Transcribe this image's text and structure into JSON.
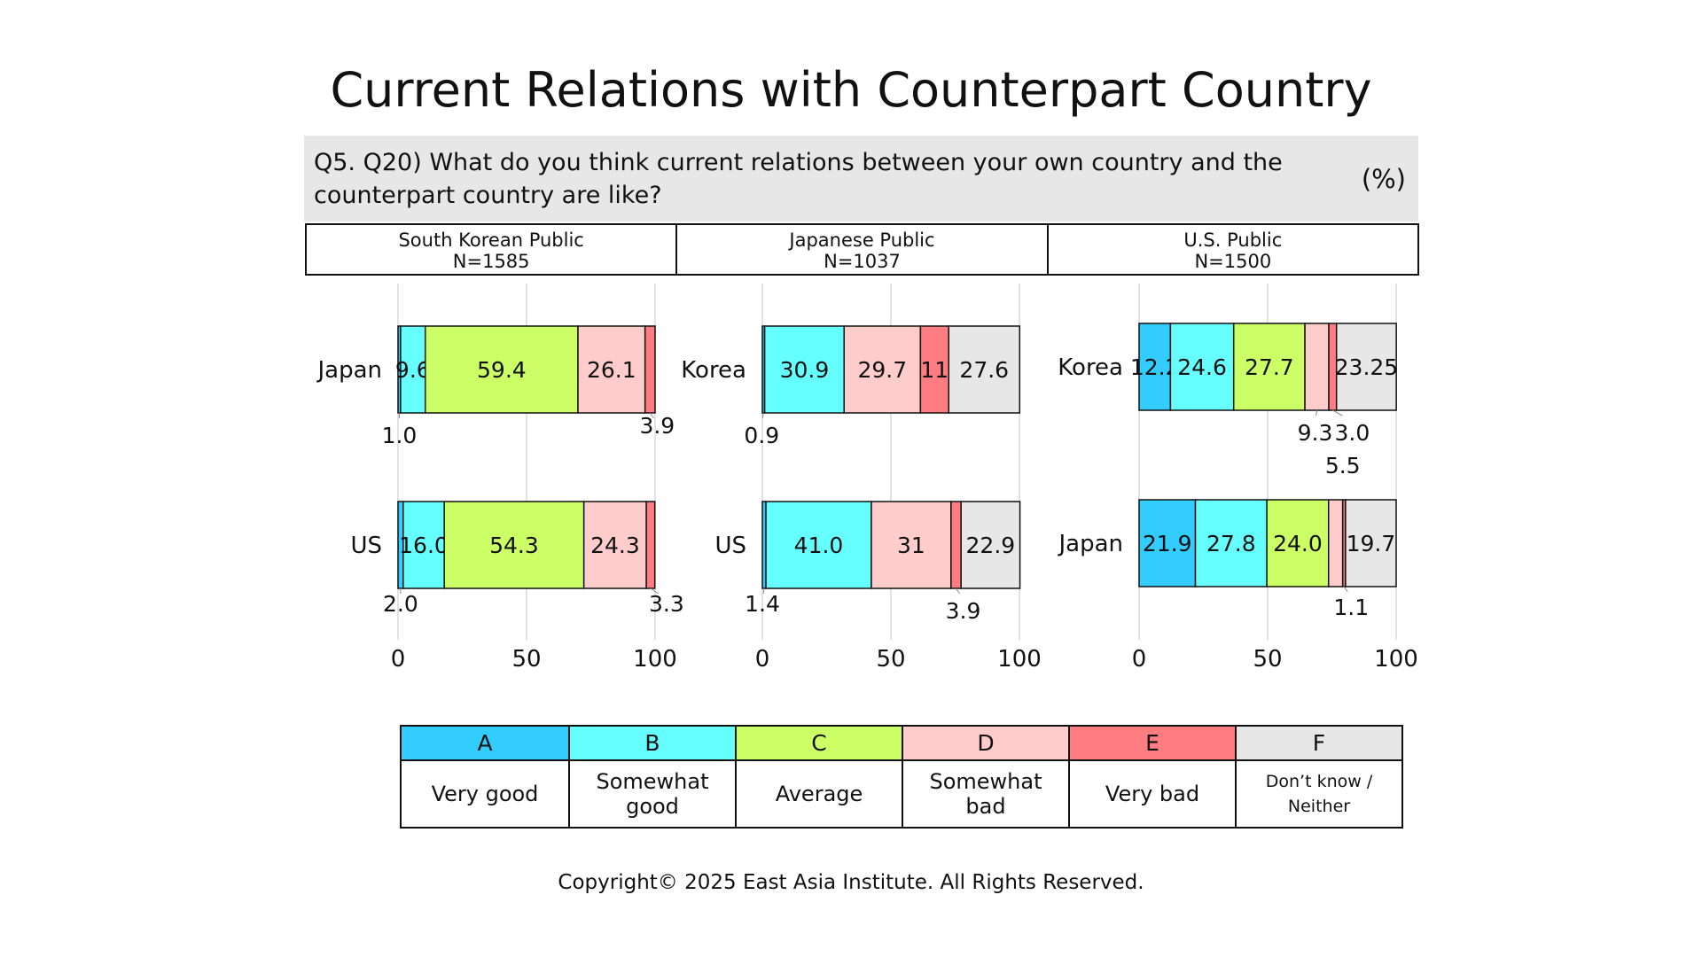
{
  "title": "Current Relations with Counterpart Country",
  "question": "Q5. Q20) What do you think current relations between your own country and the counterpart country are like?",
  "unit": "(%)",
  "panels": [
    {
      "name": "South Korean Public",
      "n": "N=1585"
    },
    {
      "name": "Japanese Public",
      "n": "N=1037"
    },
    {
      "name": "U.S. Public",
      "n": "N=1500"
    }
  ],
  "legend": [
    {
      "code": "A",
      "label": "Very good",
      "color": "#33ccff"
    },
    {
      "code": "B",
      "label": "Somewhat good",
      "color": "#66ffff"
    },
    {
      "code": "C",
      "label": "Average",
      "color": "#ccff66"
    },
    {
      "code": "D",
      "label": "Somewhat bad",
      "color": "#ffcccc"
    },
    {
      "code": "E",
      "label": "Very bad",
      "color": "#ff7c80"
    },
    {
      "code": "F",
      "label": "Don’t know / Neither",
      "color": "#e7e7e7"
    }
  ],
  "copyright": "Copyright© 2025 East Asia Institute. All Rights Reserved.",
  "chart_data": [
    {
      "type": "bar",
      "orientation": "horizontal",
      "stacked": true,
      "panel": "South Korean Public",
      "categories": [
        "Japan",
        "US"
      ],
      "series": [
        {
          "name": "A",
          "values": [
            1.0,
            2.0
          ],
          "labels": [
            "1.0",
            "2.0"
          ]
        },
        {
          "name": "B",
          "values": [
            9.6,
            16.0
          ],
          "labels": [
            "9.6",
            "16.0"
          ]
        },
        {
          "name": "C",
          "values": [
            59.4,
            54.3
          ],
          "labels": [
            "59.4",
            "54.3"
          ]
        },
        {
          "name": "D",
          "values": [
            26.1,
            24.3
          ],
          "labels": [
            "26.1",
            "24.3"
          ]
        },
        {
          "name": "E",
          "values": [
            3.9,
            3.3
          ],
          "labels": [
            "3.9",
            "3.3"
          ]
        },
        {
          "name": "F",
          "values": [
            0,
            0
          ],
          "labels": [
            "",
            ""
          ]
        }
      ],
      "xlim": [
        0,
        100
      ],
      "xticks": [
        "0",
        "50",
        "100"
      ],
      "grid": true
    },
    {
      "type": "bar",
      "orientation": "horizontal",
      "stacked": true,
      "panel": "Japanese Public",
      "categories": [
        "Korea",
        "US"
      ],
      "series": [
        {
          "name": "A",
          "values": [
            0.9,
            1.4
          ],
          "labels": [
            "0.9",
            "1.4"
          ]
        },
        {
          "name": "B",
          "values": [
            30.9,
            41.0
          ],
          "labels": [
            "30.9",
            "41.0"
          ]
        },
        {
          "name": "C",
          "values": [
            0,
            0
          ],
          "labels": [
            "",
            ""
          ]
        },
        {
          "name": "D",
          "values": [
            29.7,
            31
          ],
          "labels": [
            "29.7",
            "31"
          ]
        },
        {
          "name": "E",
          "values": [
            11,
            3.9
          ],
          "labels": [
            "11",
            "3.9"
          ]
        },
        {
          "name": "F",
          "values": [
            27.6,
            22.9
          ],
          "labels": [
            "27.6",
            "22.9"
          ]
        }
      ],
      "xlim": [
        0,
        100
      ],
      "xticks": [
        "0",
        "50",
        "100"
      ],
      "grid": true
    },
    {
      "type": "bar",
      "orientation": "horizontal",
      "stacked": true,
      "panel": "U.S. Public",
      "categories": [
        "Korea",
        "Japan"
      ],
      "series": [
        {
          "name": "A",
          "values": [
            12.2,
            21.9
          ],
          "labels": [
            "12.2",
            "21.9"
          ]
        },
        {
          "name": "B",
          "values": [
            24.6,
            27.8
          ],
          "labels": [
            "24.6",
            "27.8"
          ]
        },
        {
          "name": "C",
          "values": [
            27.7,
            24.0
          ],
          "labels": [
            "27.7",
            "24.0"
          ]
        },
        {
          "name": "D",
          "values": [
            9.3,
            5.5
          ],
          "labels": [
            "9.3",
            "5.5"
          ]
        },
        {
          "name": "E",
          "values": [
            3.0,
            1.1
          ],
          "labels": [
            "3.0",
            "1.1"
          ]
        },
        {
          "name": "F",
          "values": [
            23.25,
            19.7
          ],
          "labels": [
            "23.25",
            "19.7"
          ]
        }
      ],
      "xlim": [
        0,
        100
      ],
      "xticks": [
        "0",
        "50",
        "100"
      ],
      "grid": true
    }
  ]
}
